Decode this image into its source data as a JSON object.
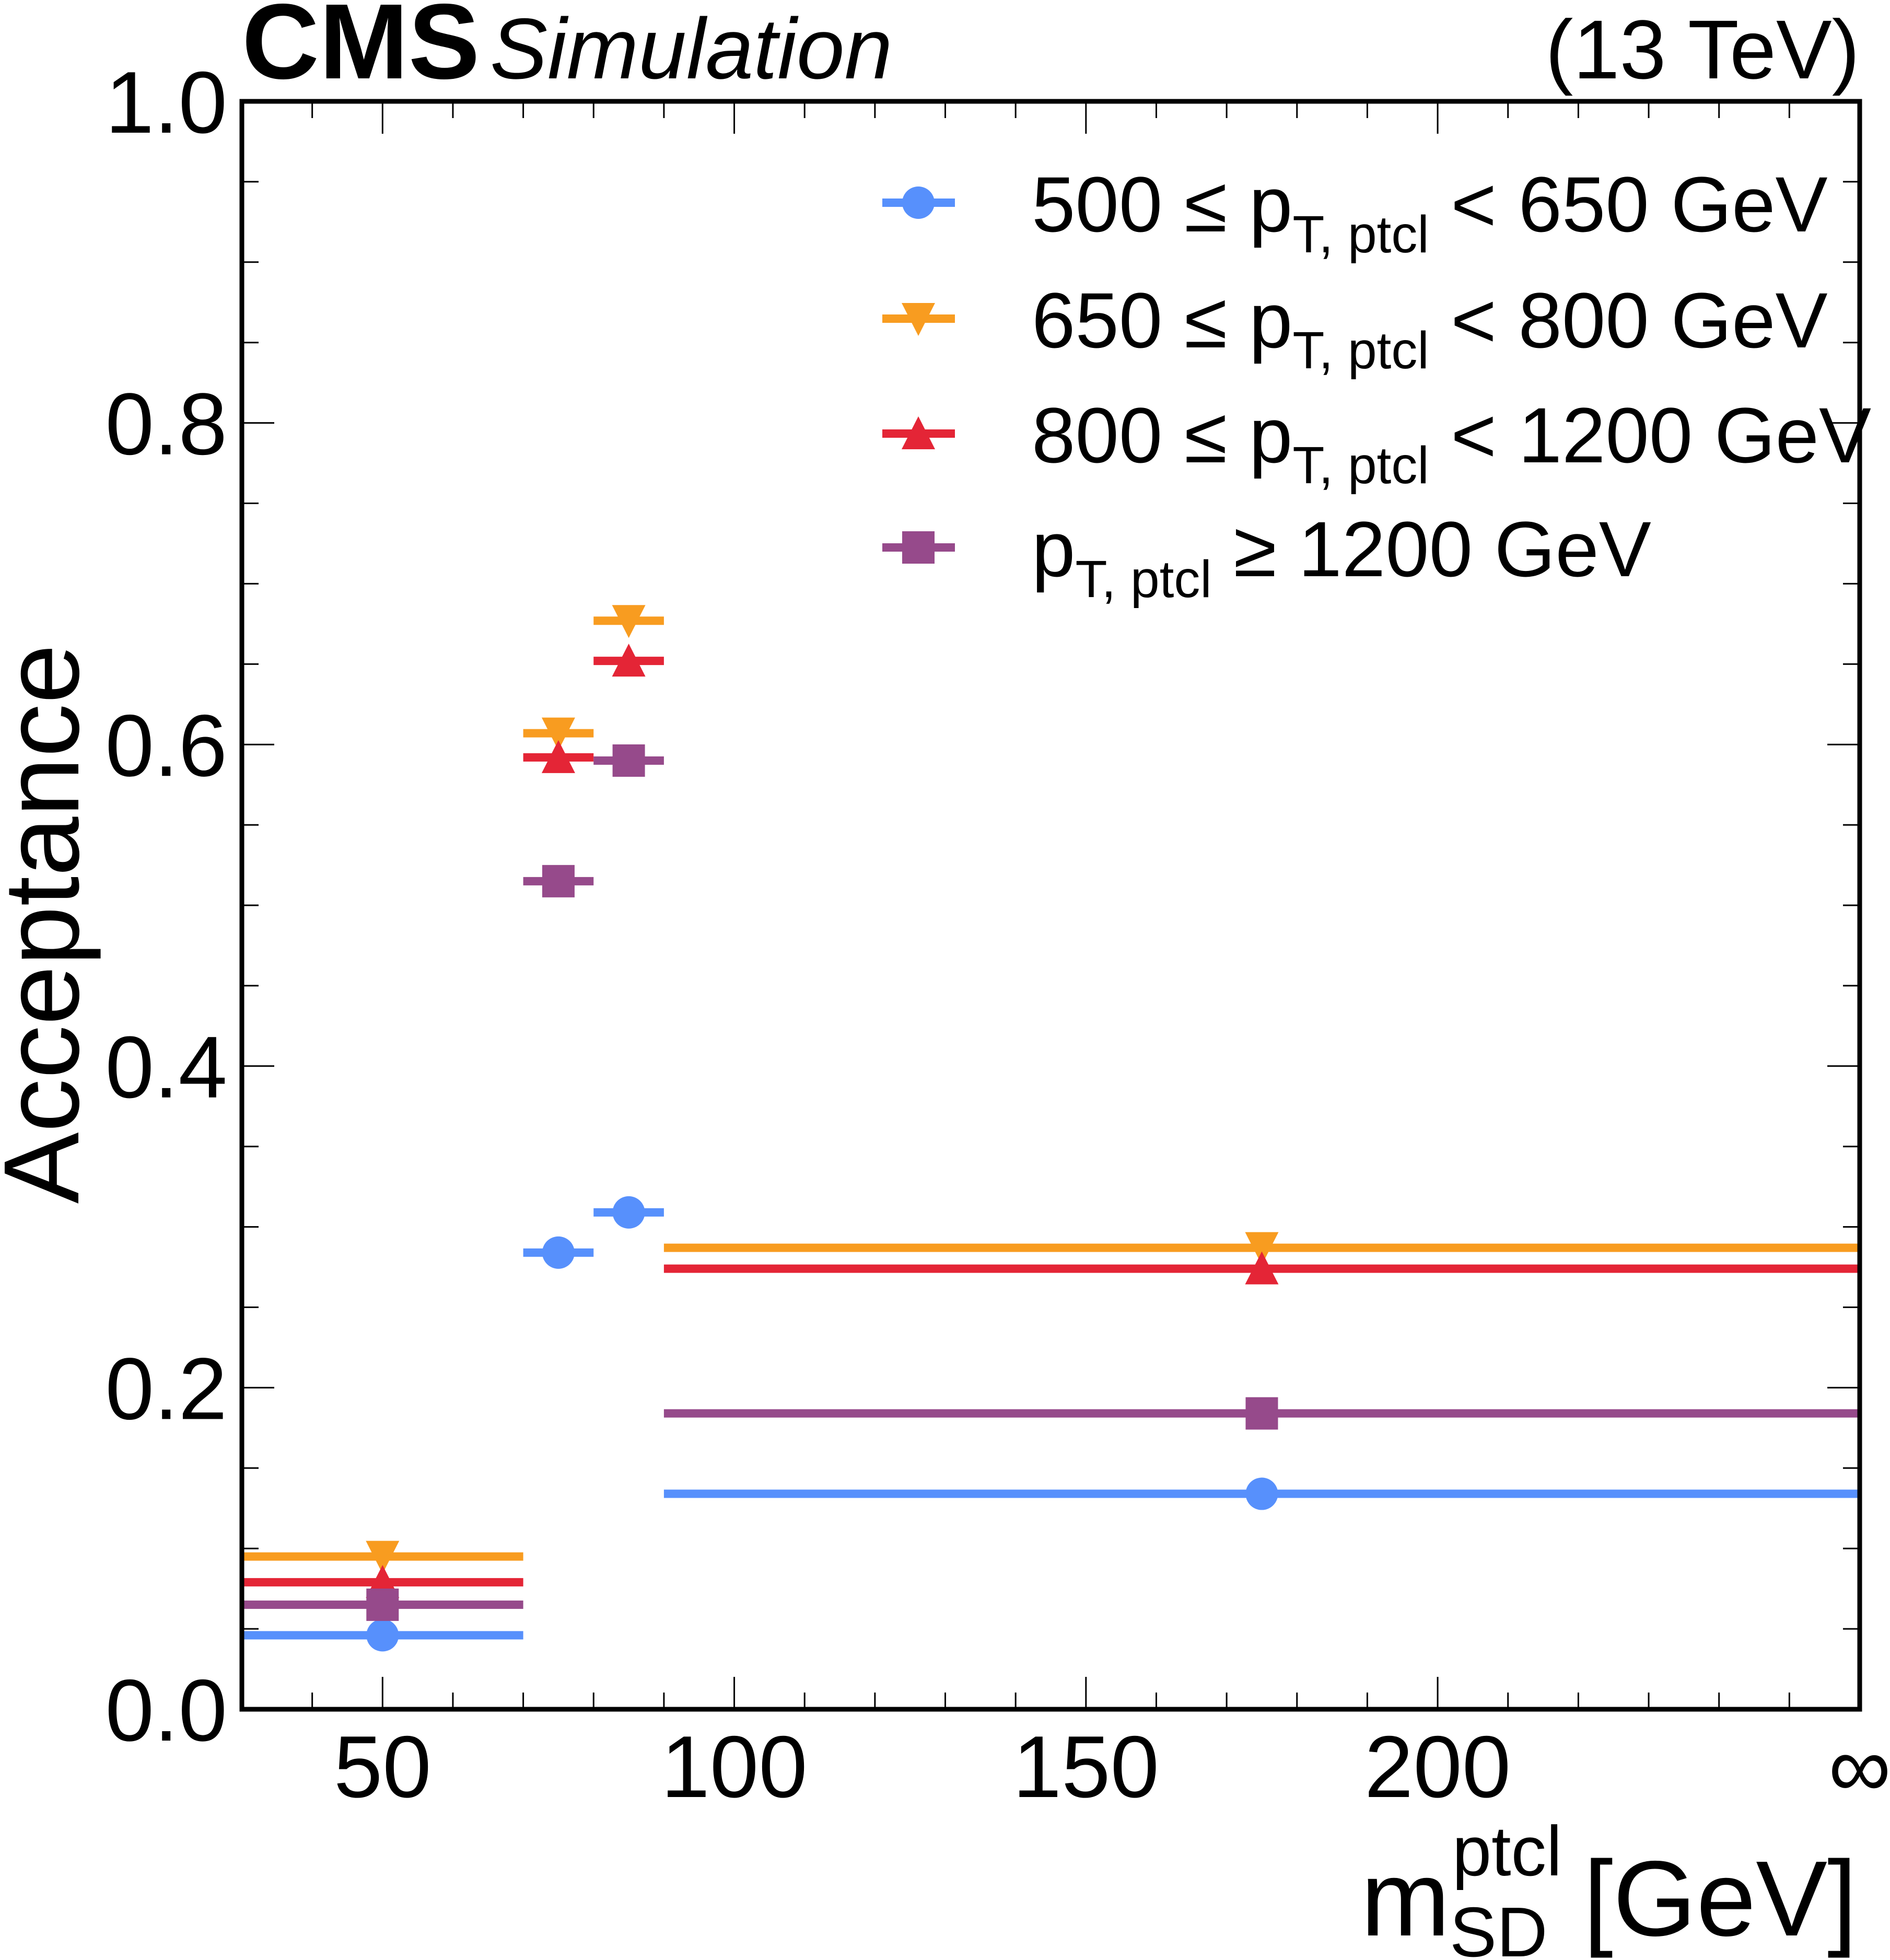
{
  "chart_data": {
    "type": "scatter",
    "experiment": "CMS",
    "status": "Simulation",
    "energy_label": "(13 TeV)",
    "xlabel": {
      "base": "m",
      "sup": "ptcl",
      "sub": "SD",
      "unit": "[GeV]"
    },
    "ylabel": "Acceptance",
    "xlim": [
      30,
      260
    ],
    "ylim": [
      0.0,
      1.0
    ],
    "x_ticks": [
      {
        "value": 50,
        "label": "50"
      },
      {
        "value": 100,
        "label": "100"
      },
      {
        "value": 150,
        "label": "150"
      },
      {
        "value": 200,
        "label": "200"
      },
      {
        "value": 260,
        "label": "∞"
      }
    ],
    "y_ticks": [
      {
        "value": 0.0,
        "label": "0.0"
      },
      {
        "value": 0.2,
        "label": "0.2"
      },
      {
        "value": 0.4,
        "label": "0.4"
      },
      {
        "value": 0.6,
        "label": "0.6"
      },
      {
        "value": 0.8,
        "label": "0.8"
      },
      {
        "value": 1.0,
        "label": "1.0"
      }
    ],
    "x_minor_step": 10,
    "y_minor_step": 0.05,
    "grid": false,
    "legend_position": "top-right",
    "bins": [
      {
        "low": 30,
        "high": 70,
        "center": 50
      },
      {
        "low": 70,
        "high": 80,
        "center": 75
      },
      {
        "low": 80,
        "high": 90,
        "center": 85
      },
      {
        "low": 90,
        "high": 260,
        "center": 175,
        "high_label": "∞"
      }
    ],
    "series": [
      {
        "name": "500 ≤ pT,ptcl < 650 GeV",
        "label_pre": "500 ≤ p",
        "label_sub": "T, ptcl",
        "label_post": " < 650 GeV",
        "marker": "circle",
        "color": "#5790fc",
        "values": [
          0.046,
          0.284,
          0.309,
          0.134
        ]
      },
      {
        "name": "650 ≤ pT,ptcl < 800 GeV",
        "label_pre": "650 ≤ p",
        "label_sub": "T, ptcl",
        "label_post": " < 800 GeV",
        "marker": "triangle-down",
        "color": "#f89c20",
        "values": [
          0.095,
          0.607,
          0.677,
          0.287
        ]
      },
      {
        "name": "800 ≤ pT,ptcl < 1200 GeV",
        "label_pre": "800 ≤ p",
        "label_sub": "T, ptcl",
        "label_post": " < 1200 GeV",
        "marker": "triangle-up",
        "color": "#e42536",
        "values": [
          0.079,
          0.592,
          0.652,
          0.274
        ]
      },
      {
        "name": "pT,ptcl ≥ 1200 GeV",
        "label_pre": "p",
        "label_sub": "T, ptcl",
        "label_post": " ≥ 1200 GeV",
        "marker": "square",
        "color": "#964a8b",
        "values": [
          0.065,
          0.515,
          0.59,
          0.184
        ]
      }
    ]
  }
}
